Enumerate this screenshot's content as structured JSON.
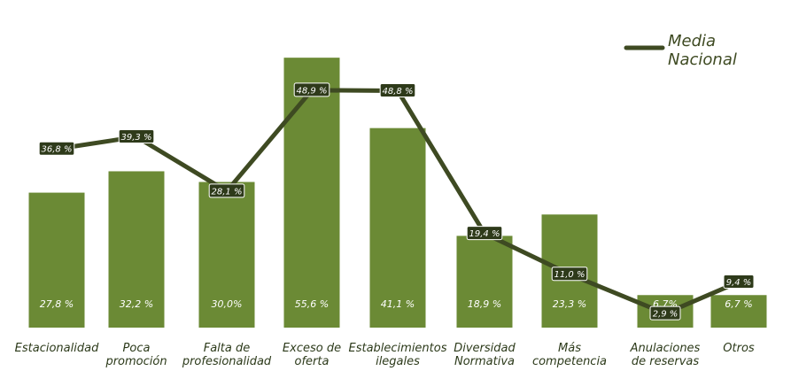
{
  "chart_data": {
    "type": "bar",
    "categories": [
      [
        "Estacionalidad"
      ],
      [
        "Poca",
        "promoción"
      ],
      [
        "Falta de",
        "profesionalidad"
      ],
      [
        "Exceso de",
        "oferta"
      ],
      [
        "Establecimientos",
        "ilegales"
      ],
      [
        "Diversidad",
        "Normativa"
      ],
      [
        "Más",
        "competencia"
      ],
      [
        "Anulaciones",
        "de reservas"
      ],
      [
        "Otros"
      ]
    ],
    "series": [
      {
        "type": "bar",
        "values": [
          27.8,
          32.2,
          30.0,
          55.6,
          41.1,
          18.9,
          23.3,
          6.7,
          6.7
        ],
        "labels": [
          "27,8 %",
          "32,2 %",
          "30,0%",
          "55,6 %",
          "41,1 %",
          "18,9 %",
          "23,3 %",
          "6,7%",
          "6,7 %"
        ],
        "color": "#6b8a35"
      },
      {
        "type": "line",
        "name": "Media Nacional",
        "values": [
          36.8,
          39.3,
          28.1,
          48.9,
          48.8,
          19.4,
          11.0,
          2.9,
          9.4
        ],
        "labels": [
          "36,8 %",
          "39,3 %",
          "28,1 %",
          "48,9 %",
          "48,8 %",
          "19,4 %",
          "11,0 %",
          "2,9 %",
          "9,4 %"
        ],
        "color": "#3e4a22"
      }
    ],
    "ylim": [
      0,
      58
    ],
    "grid": false,
    "legend": {
      "position": "top-right",
      "lines": [
        "Media",
        "Nacional"
      ]
    }
  }
}
